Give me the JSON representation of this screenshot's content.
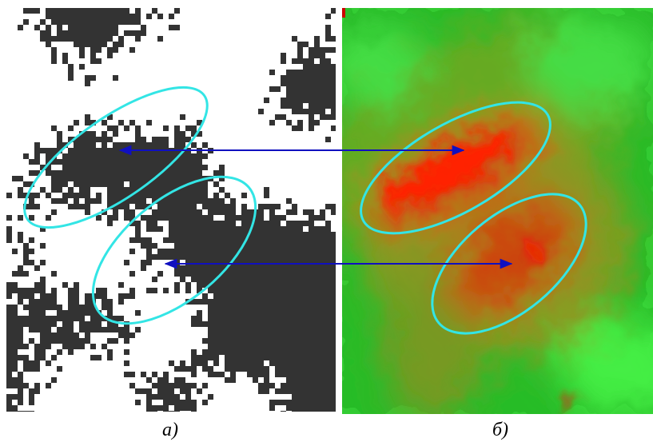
{
  "panels": [
    {
      "label": "а)"
    },
    {
      "label": "б)"
    }
  ]
}
